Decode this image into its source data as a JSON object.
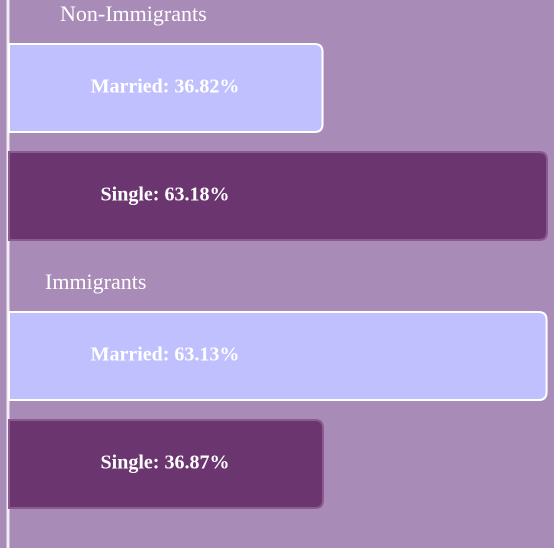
{
  "chart_data": {
    "type": "bar",
    "orientation": "horizontal",
    "xlim": [
      0,
      64
    ],
    "groups": [
      {
        "name": "Non-Immigrants",
        "values": [
          36.82,
          63.18
        ],
        "value_labels": [
          "Married: 36.82%",
          "Single: 63.18%"
        ],
        "colors": [
          "#c0c0ff",
          "#6b3570"
        ]
      },
      {
        "name": "Immigrants",
        "values": [
          63.13,
          36.87
        ],
        "value_labels": [
          "Married: 63.13%",
          "Single: 36.87%"
        ],
        "colors": [
          "#c0c0ff",
          "#6b3570"
        ]
      }
    ]
  }
}
